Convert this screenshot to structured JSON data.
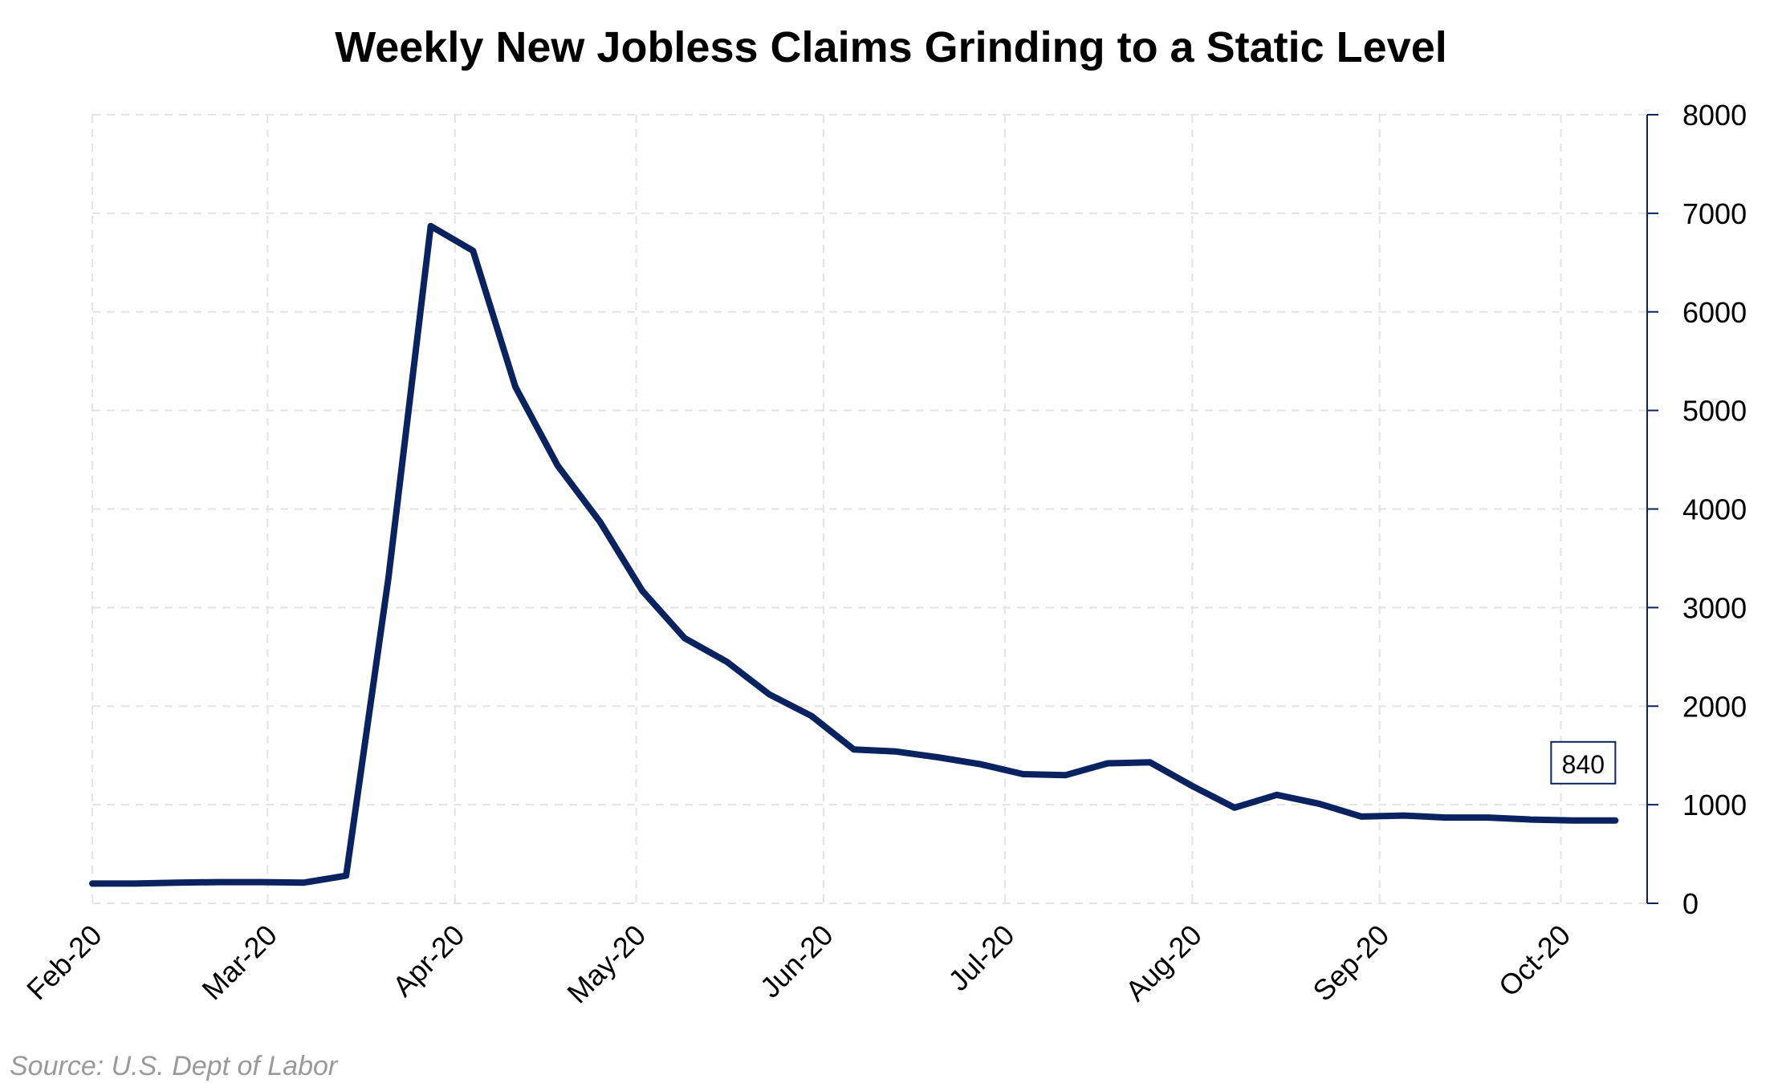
{
  "chart_data": {
    "type": "line",
    "title": "Weekly New Jobless Claims Grinding to a Static Level",
    "source": "Source: U.S. Dept of Labor",
    "xlabel": "",
    "ylabel": "",
    "x_tick_labels": [
      "Feb-20",
      "Mar-20",
      "Apr-20",
      "May-20",
      "Jun-20",
      "Jul-20",
      "Aug-20",
      "Sep-20",
      "Oct-20"
    ],
    "y_ticks": [
      0,
      1000,
      2000,
      3000,
      4000,
      5000,
      6000,
      7000,
      8000
    ],
    "ylim": [
      0,
      8000
    ],
    "xlim": [
      "2020-02-01",
      "2020-10-15"
    ],
    "y_axis_side": "right",
    "grid": true,
    "series": [
      {
        "color": "#0b2260",
        "points": [
          {
            "x": "2020-02-01",
            "y": 200
          },
          {
            "x": "2020-02-08",
            "y": 200
          },
          {
            "x": "2020-02-15",
            "y": 210
          },
          {
            "x": "2020-02-22",
            "y": 215
          },
          {
            "x": "2020-02-29",
            "y": 215
          },
          {
            "x": "2020-03-07",
            "y": 210
          },
          {
            "x": "2020-03-14",
            "y": 280
          },
          {
            "x": "2020-03-21",
            "y": 3300
          },
          {
            "x": "2020-03-28",
            "y": 6870
          },
          {
            "x": "2020-04-04",
            "y": 6620
          },
          {
            "x": "2020-04-11",
            "y": 5240
          },
          {
            "x": "2020-04-18",
            "y": 4440
          },
          {
            "x": "2020-04-25",
            "y": 3870
          },
          {
            "x": "2020-05-02",
            "y": 3170
          },
          {
            "x": "2020-05-09",
            "y": 2690
          },
          {
            "x": "2020-05-16",
            "y": 2450
          },
          {
            "x": "2020-05-23",
            "y": 2120
          },
          {
            "x": "2020-05-30",
            "y": 1900
          },
          {
            "x": "2020-06-06",
            "y": 1560
          },
          {
            "x": "2020-06-13",
            "y": 1540
          },
          {
            "x": "2020-06-20",
            "y": 1480
          },
          {
            "x": "2020-06-27",
            "y": 1410
          },
          {
            "x": "2020-07-04",
            "y": 1310
          },
          {
            "x": "2020-07-11",
            "y": 1300
          },
          {
            "x": "2020-07-18",
            "y": 1420
          },
          {
            "x": "2020-07-25",
            "y": 1430
          },
          {
            "x": "2020-08-01",
            "y": 1190
          },
          {
            "x": "2020-08-08",
            "y": 970
          },
          {
            "x": "2020-08-15",
            "y": 1100
          },
          {
            "x": "2020-08-22",
            "y": 1010
          },
          {
            "x": "2020-08-29",
            "y": 880
          },
          {
            "x": "2020-09-05",
            "y": 890
          },
          {
            "x": "2020-09-12",
            "y": 870
          },
          {
            "x": "2020-09-19",
            "y": 870
          },
          {
            "x": "2020-09-26",
            "y": 850
          },
          {
            "x": "2020-10-03",
            "y": 840
          },
          {
            "x": "2020-10-10",
            "y": 840
          }
        ]
      }
    ],
    "last_value_label": "840"
  }
}
